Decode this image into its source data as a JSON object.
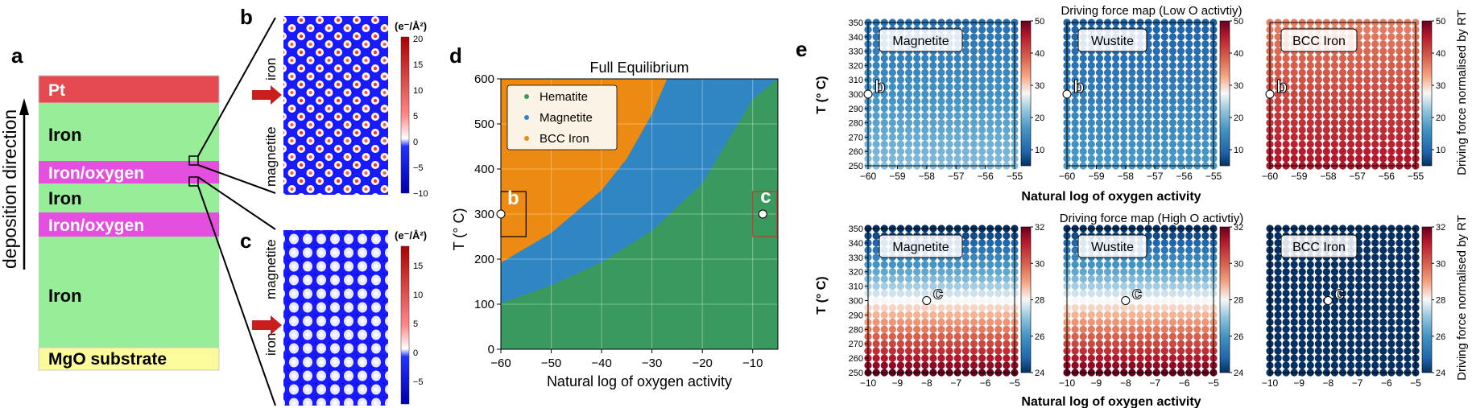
{
  "panel_a": {
    "letter": "a",
    "direction_label": "deposition direction",
    "layers": [
      {
        "label": "Pt",
        "color": "#e44a4f",
        "text_color": "#ffffff"
      },
      {
        "label": "Iron",
        "color": "#98ee98",
        "text_color": "#000000"
      },
      {
        "label": "Iron/oxygen",
        "color": "#e44fe0",
        "text_color": "#ffffff"
      },
      {
        "label": "Iron",
        "color": "#98ee98",
        "text_color": "#000000"
      },
      {
        "label": "Iron/oxygen",
        "color": "#e44fe0",
        "text_color": "#ffffff"
      },
      {
        "label": "Iron",
        "color": "#98ee98",
        "text_color": "#000000"
      },
      {
        "label": "MgO substrate",
        "color": "#fbfb9c",
        "text_color": "#000000"
      }
    ]
  },
  "panel_b": {
    "letter": "b",
    "label_top": "iron",
    "label_bottom": "magnetite",
    "colorbar_unit": "(e⁻/Å²)",
    "colorbar_ticks": [
      "20",
      "15",
      "10",
      "5",
      "0",
      "−5",
      "−10"
    ]
  },
  "panel_c": {
    "letter": "c",
    "label_top": "magnetite",
    "label_bottom": "iron",
    "colorbar_unit": "(e⁻/Å²)",
    "colorbar_ticks": [
      "15",
      "10",
      "5",
      "0",
      "−5"
    ]
  },
  "panel_d": {
    "letter": "d",
    "marker_b": "b",
    "marker_c": "c"
  },
  "panel_e": {
    "letter": "e",
    "colorbar_label": "Driving force normalised by RT",
    "top_row": {
      "title": "Driving force map (Low O activtiy)",
      "marker": "b",
      "panels": [
        "Magnetite",
        "Wustite",
        "BCC Iron"
      ],
      "x_ticks": [
        "−60",
        "−59",
        "−58",
        "−57",
        "−56",
        "−55"
      ],
      "colorbar_ticks": [
        "50",
        "40",
        "30",
        "20",
        "10"
      ]
    },
    "bottom_row": {
      "title": "Driving force map (High O activtiy)",
      "marker": "c",
      "panels": [
        "Magnetite",
        "Wustite",
        "BCC Iron"
      ],
      "x_ticks": [
        "−10",
        "−9",
        "−8",
        "−7",
        "−6",
        "−5"
      ],
      "colorbar_ticks": [
        "32",
        "30",
        "28",
        "26",
        "24"
      ]
    },
    "y_ticks": [
      "350",
      "340",
      "330",
      "320",
      "310",
      "300",
      "290",
      "280",
      "270",
      "260",
      "250"
    ],
    "ylabel": "T (° C)",
    "xlabel": "Natural log of oxygen activity"
  },
  "chart_data": [
    {
      "type": "area",
      "title": "Full Equilibrium",
      "xlabel": "Natural log of oxygen activity",
      "ylabel": "T (° C)",
      "xlim": [
        -60,
        -5
      ],
      "ylim": [
        0,
        600
      ],
      "x_ticks": [
        -60,
        -50,
        -40,
        -30,
        -20,
        -10
      ],
      "y_ticks": [
        0,
        100,
        200,
        300,
        400,
        500,
        600
      ],
      "grid": true,
      "legend_position": "top-left",
      "colors": {
        "Hematite": "#3a9a5e",
        "Magnetite": "#2f86c3",
        "BCC Iron": "#ec8a11"
      },
      "series": [
        {
          "name": "Hematite",
          "region": "below magnetite boundary (fills the rest)"
        },
        {
          "name": "Magnetite",
          "boundary_lower": {
            "x": [
              -60,
              -50,
              -40,
              -30,
              -20,
              -10,
              -5
            ],
            "y": [
              102,
              142,
              193,
              263,
              368,
              555,
              600
            ]
          }
        },
        {
          "name": "BCC Iron",
          "boundary_lower": {
            "x": [
              -60,
              -50,
              -40,
              -35,
              -30,
              -27
            ],
            "y": [
              192,
              258,
              353,
              423,
              522,
              600
            ]
          }
        }
      ],
      "markers": [
        {
          "label": "b",
          "x": -60,
          "y": 300
        },
        {
          "label": "c",
          "x": -8,
          "y": 300
        }
      ]
    },
    {
      "type": "scatter",
      "title": "Driving force map (Low O activtiy)",
      "xlabel": "Natural log of oxygen activity",
      "ylabel": "T (° C)",
      "xlim": [
        -60,
        -55
      ],
      "ylim": [
        250,
        350
      ],
      "colorbar_label": "Driving force normalised by RT",
      "panels": [
        {
          "name": "Magnetite",
          "clim": [
            5,
            50
          ],
          "T_range": [
            250,
            350
          ],
          "value_range": [
            21,
            11
          ],
          "trend": "increases with lower T"
        },
        {
          "name": "Wustite",
          "clim": [
            5,
            50
          ],
          "T_range": [
            250,
            350
          ],
          "value_range": [
            17,
            9
          ],
          "trend": "increases with lower T"
        },
        {
          "name": "BCC Iron",
          "clim": [
            5,
            50
          ],
          "T_range": [
            250,
            350
          ],
          "value_range": [
            46,
            36
          ],
          "trend": "increases with lower T"
        }
      ],
      "marker": {
        "label": "b",
        "x": -60,
        "y": 300
      }
    },
    {
      "type": "scatter",
      "title": "Driving force map (High O activtiy)",
      "xlabel": "Natural log of oxygen activity",
      "ylabel": "T (° C)",
      "xlim": [
        -10,
        -5
      ],
      "ylim": [
        250,
        350
      ],
      "colorbar_label": "Driving force normalised by RT",
      "panels": [
        {
          "name": "Magnetite",
          "clim": [
            24,
            32
          ],
          "T_range": [
            250,
            350
          ],
          "value_range": [
            32,
            24
          ],
          "trend": "increases with lower T"
        },
        {
          "name": "Wustite",
          "clim": [
            24,
            32
          ],
          "T_range": [
            250,
            350
          ],
          "value_range": [
            32,
            24
          ],
          "trend": "increases with lower T"
        },
        {
          "name": "BCC Iron",
          "clim": [
            24,
            32
          ],
          "T_range": [
            250,
            350
          ],
          "value_range": [
            24,
            24
          ],
          "trend": "uniform"
        }
      ],
      "marker": {
        "label": "c",
        "x": -8,
        "y": 300
      }
    }
  ]
}
